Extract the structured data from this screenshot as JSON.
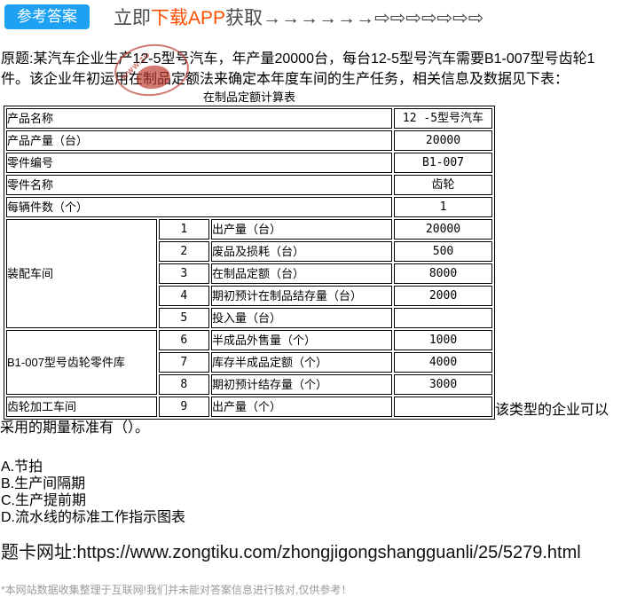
{
  "header": {
    "badge": "参考答案",
    "badge_color": "#1da2f3",
    "promo_prefix": "立即",
    "promo_highlight": "下载APP",
    "promo_suffix": "获取",
    "highlight_color": "#ff4e00",
    "arrows_solid": "→→→→→→",
    "arrows_hollow": "⇨⇨⇨⇨⇨⇨⇨"
  },
  "watermark": {
    "text": "WWW.ZO",
    "color": "#bd3b2f"
  },
  "question": {
    "text": "原题:某汽车企业生产12-5型号汽车，年产量20000台，每台12-5型号汽车需要B1-007型号齿轮1件。该企业年初运用在制品定额法来确定本年度车间的生产任务，相关信息及数据见下表：",
    "after_table": "该类型的企业可以采用的期量标准有（）。"
  },
  "table": {
    "title": "在制品定额计算表",
    "info_rows": [
      {
        "label": "产品名称",
        "value": "12 -5型号汽车"
      },
      {
        "label": "产品产量（台）",
        "value": "20000"
      },
      {
        "label": "零件编号",
        "value": "B1-007"
      },
      {
        "label": "零件名称",
        "value": "齿轮"
      },
      {
        "label": "每辆件数（个）",
        "value": "1"
      }
    ],
    "sections": [
      {
        "name": "装配车间",
        "rows": [
          {
            "no": "1",
            "item": "出产量（台）",
            "value": "20000"
          },
          {
            "no": "2",
            "item": "废品及损耗（台）",
            "value": "500"
          },
          {
            "no": "3",
            "item": "在制品定额（台）",
            "value": "8000"
          },
          {
            "no": "4",
            "item": "期初预计在制品结存量（台）",
            "value": "2000"
          },
          {
            "no": "5",
            "item": "投入量（台）",
            "value": ""
          }
        ]
      },
      {
        "name": "B1-007型号齿轮零件库",
        "rows": [
          {
            "no": "6",
            "item": "半成品外售量（个）",
            "value": "1000"
          },
          {
            "no": "7",
            "item": "库存半成品定额（个）",
            "value": "4000"
          },
          {
            "no": "8",
            "item": "期初预计结存量（个）",
            "value": "3000"
          }
        ]
      },
      {
        "name": "齿轮加工车间",
        "rows": [
          {
            "no": "9",
            "item": "出产量（个）",
            "value": ""
          }
        ]
      }
    ]
  },
  "options": [
    "A.节拍",
    "B.生产间隔期",
    "C.生产提前期",
    "D.流水线的标准工作指示图表"
  ],
  "footer": {
    "card_url": "题卡网址:https://www.zongtiku.com/zhongjigongshangguanli/25/5279.html",
    "disclaimer": "*本网站数据收集整理于互联网!我们并未能对答案信息进行核对,仅供参考！"
  }
}
